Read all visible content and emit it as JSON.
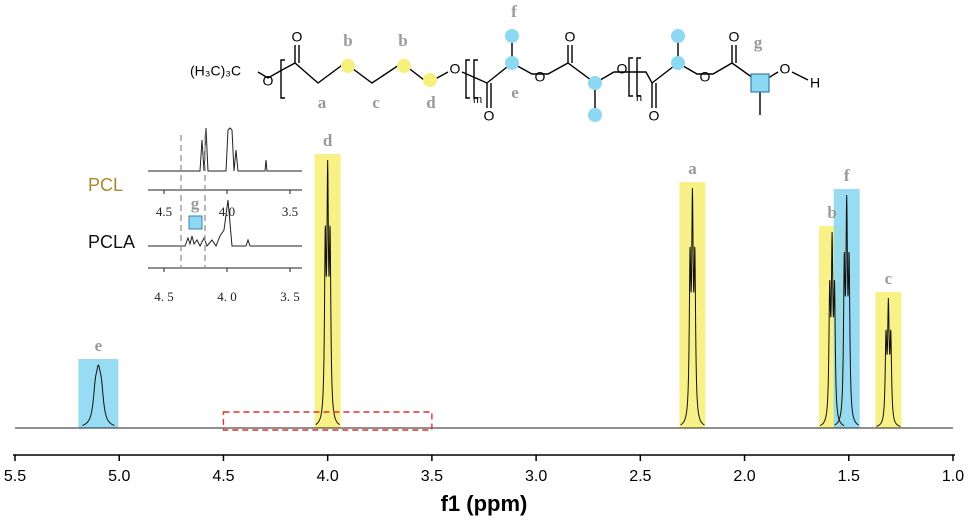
{
  "structure": {
    "end_group": "(H₃C)₃C",
    "oxygens": [
      "O",
      "O",
      "O",
      "O",
      "O",
      "O",
      "O",
      "O",
      "O",
      "O",
      "O"
    ],
    "subscripts": [
      "m",
      "n"
    ],
    "hydrogen": "H",
    "labels": [
      "a",
      "b",
      "c",
      "b",
      "d",
      "e",
      "f",
      "g"
    ]
  },
  "chart_data": {
    "type": "nmr",
    "x_label": "f1 (ppm)",
    "xlim": [
      5.5,
      1.0
    ],
    "xticks": [
      5.5,
      {
        "value": 5,
        "label": "5.0"
      },
      4.5,
      {
        "value": 4,
        "label": "4.0"
      },
      3.5,
      {
        "value": 3,
        "label": "3.0"
      },
      2.5,
      {
        "value": 2,
        "label": "2.0"
      },
      1.5,
      {
        "value": 1,
        "label": "1.0"
      }
    ],
    "peaks": [
      {
        "label": "e",
        "x": 5.1,
        "height": 63,
        "color": "#8dd8f2"
      },
      {
        "label": "d",
        "x": 4.0,
        "height": 268,
        "color": "#f7f07a"
      },
      {
        "label": "a",
        "x": 2.25,
        "height": 240,
        "color": "#f7f07a"
      },
      {
        "label": "b",
        "x": 1.58,
        "height": 196,
        "color": "#f7f07a"
      },
      {
        "label": "f",
        "x": 1.51,
        "height": 233,
        "color": "#8dd8f2"
      },
      {
        "label": "c",
        "x": 1.31,
        "height": 130,
        "color": "#f7f07a"
      }
    ],
    "inset": {
      "samples": [
        "PCL",
        "PCLA"
      ],
      "label": "g",
      "xticks_top": [
        4.5,
        {
          "value": 4,
          "label": "4.0"
        },
        3.5
      ],
      "xticks_bottom": [
        {
          "value": 4.5,
          "label": "4. 5"
        },
        {
          "value": 4,
          "label": "4. 0"
        },
        {
          "value": 3.5,
          "label": "3. 5"
        }
      ]
    }
  }
}
